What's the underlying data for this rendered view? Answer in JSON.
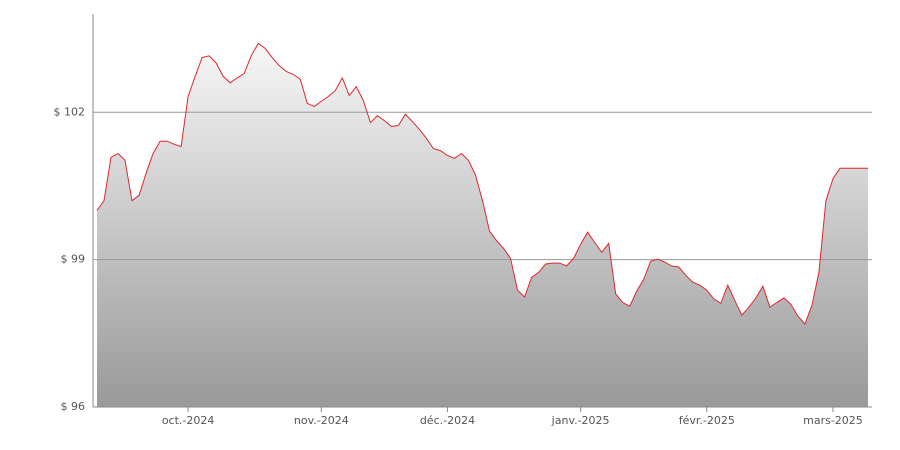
{
  "chart_data": {
    "type": "area",
    "categories": [
      null,
      null,
      null,
      null,
      null,
      null,
      null,
      null,
      null,
      null,
      null,
      null,
      null,
      "oct.-2024",
      null,
      null,
      null,
      null,
      null,
      null,
      null,
      null,
      null,
      null,
      null,
      null,
      null,
      null,
      null,
      null,
      null,
      null,
      "nov.-2024",
      null,
      null,
      null,
      null,
      null,
      null,
      null,
      null,
      null,
      null,
      null,
      null,
      null,
      null,
      null,
      null,
      null,
      "déc.-2024",
      null,
      null,
      null,
      null,
      null,
      null,
      null,
      null,
      null,
      null,
      null,
      null,
      null,
      null,
      null,
      null,
      null,
      null,
      "janv.-2025",
      null,
      null,
      null,
      null,
      null,
      null,
      null,
      null,
      null,
      null,
      null,
      null,
      null,
      null,
      null,
      null,
      null,
      "févr.-2025",
      null,
      null,
      null,
      null,
      null,
      null,
      null,
      null,
      null,
      null,
      null,
      null,
      null,
      null,
      null,
      null,
      null,
      "mars-2025",
      null,
      null,
      null,
      null,
      null
    ],
    "values": [
      100.0,
      100.2,
      101.08,
      101.16,
      101.02,
      100.2,
      100.31,
      100.76,
      101.16,
      101.41,
      101.41,
      101.35,
      101.3,
      102.32,
      102.73,
      103.11,
      103.15,
      103.0,
      102.73,
      102.6,
      102.7,
      102.79,
      103.15,
      103.4,
      103.3,
      103.11,
      102.95,
      102.83,
      102.77,
      102.67,
      102.18,
      102.12,
      102.22,
      102.32,
      102.44,
      102.7,
      102.34,
      102.52,
      102.24,
      101.79,
      101.93,
      101.83,
      101.71,
      101.73,
      101.96,
      101.81,
      101.65,
      101.47,
      101.26,
      101.22,
      101.12,
      101.06,
      101.16,
      101.02,
      100.72,
      100.2,
      99.58,
      99.39,
      99.23,
      99.03,
      98.38,
      98.24,
      98.64,
      98.74,
      98.91,
      98.93,
      98.93,
      98.87,
      99.03,
      99.31,
      99.56,
      99.35,
      99.15,
      99.33,
      98.3,
      98.13,
      98.05,
      98.36,
      98.6,
      98.97,
      99.01,
      98.95,
      98.87,
      98.85,
      98.68,
      98.54,
      98.48,
      98.38,
      98.2,
      98.11,
      98.48,
      98.17,
      97.87,
      98.03,
      98.22,
      98.46,
      98.03,
      98.13,
      98.22,
      98.09,
      97.85,
      97.69,
      98.07,
      98.74,
      100.2,
      100.65,
      100.86,
      100.86,
      100.86,
      100.86,
      100.86
    ],
    "color": "#e0262b",
    "ylim": [
      96,
      104
    ],
    "yticks": [
      {
        "value": 96,
        "label": "$ 96"
      },
      {
        "value": 99,
        "label": "$ 99"
      },
      {
        "value": 102,
        "label": "$ 102"
      }
    ],
    "grid": true
  }
}
